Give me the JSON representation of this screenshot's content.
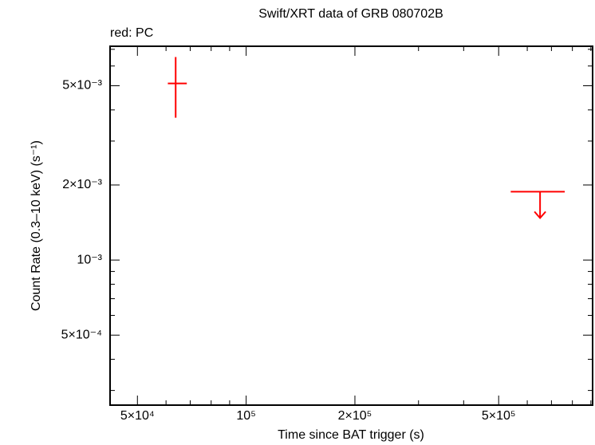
{
  "chart_data": {
    "type": "scatter",
    "title": "Swift/XRT data of GRB 080702B",
    "subtitle": "red: PC",
    "x_label": "Time since BAT trigger (s)",
    "y_label": "Count Rate (0.3–10 keV) (s⁻¹)",
    "x_log": true,
    "y_log": true,
    "xlim": [
      42000,
      910000
    ],
    "ylim": [
      0.000262,
      0.0072
    ],
    "xticks": [
      {
        "value": 50000,
        "label": "5×10⁴"
      },
      {
        "value": 100000,
        "label": "10⁵"
      },
      {
        "value": 200000,
        "label": "2×10⁵"
      },
      {
        "value": 500000,
        "label": "5×10⁵"
      }
    ],
    "xminorticks": [
      60000,
      70000,
      80000,
      90000,
      300000,
      400000,
      600000,
      700000,
      800000,
      900000
    ],
    "yticks": [
      {
        "value": 0.0005,
        "label": "5×10⁻⁴"
      },
      {
        "value": 0.001,
        "label": "10⁻³"
      },
      {
        "value": 0.002,
        "label": "2×10⁻³"
      },
      {
        "value": 0.005,
        "label": "5×10⁻³"
      }
    ],
    "yminorticks": [
      0.0003,
      0.0004,
      0.0006,
      0.0007,
      0.0008,
      0.0009,
      0.003,
      0.004,
      0.006,
      0.007
    ],
    "series": [
      {
        "color": "#ff0000",
        "kind": "points",
        "x": [
          63800
        ],
        "x_low": [
          60700
        ],
        "x_high": [
          68500
        ],
        "values": [
          0.00511
        ],
        "y_low": [
          0.00372
        ],
        "y_high": [
          0.00652
        ]
      },
      {
        "color": "#ff0000",
        "kind": "upper_limits",
        "x": [
          651000
        ],
        "x_low": [
          540000
        ],
        "x_high": [
          762000
        ],
        "values": [
          0.00188
        ]
      }
    ]
  }
}
